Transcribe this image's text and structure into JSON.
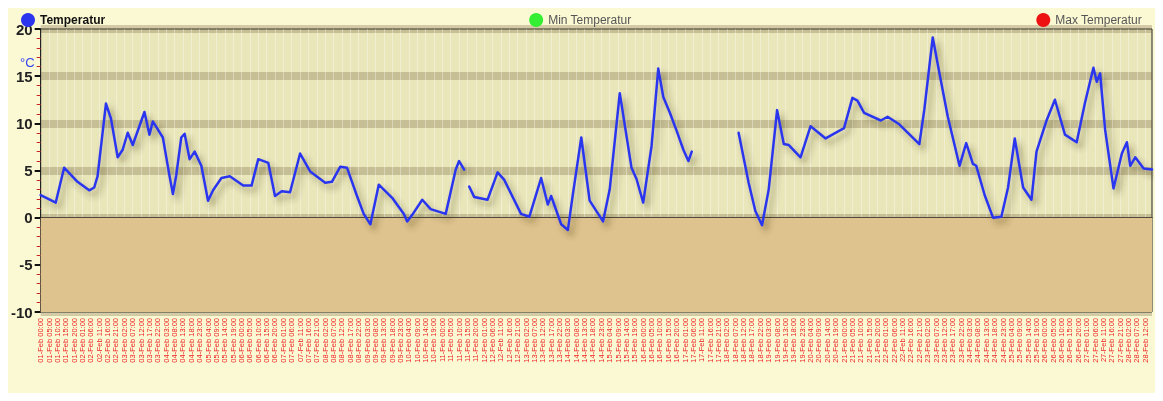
{
  "chart_data": {
    "type": "line",
    "ylabel": "°C",
    "xlim": [
      "--02-01T00:00",
      "--02-28T16:00"
    ],
    "ylim": [
      -10,
      20
    ],
    "yticks": [
      -10,
      -5,
      0,
      5,
      10,
      15,
      20
    ],
    "grid": true,
    "legend": "top",
    "marker": "none",
    "line_style": "solid",
    "bands": [
      {
        "axis": "y",
        "from": -10,
        "to": 0,
        "color": "#dfc38e"
      }
    ],
    "xticks": [
      {
        "value": "--02-01T00:00",
        "label": "01-Feb 00:00"
      },
      {
        "value": "--02-01T05:00",
        "label": "01-Feb 05:00"
      },
      {
        "value": "--02-01T10:00",
        "label": "01-Feb 10:00"
      },
      {
        "value": "--02-01T15:00",
        "label": "01-Feb 15:00"
      },
      {
        "value": "--02-01T20:00",
        "label": "01-Feb 20:00"
      },
      {
        "value": "--02-02T01:00",
        "label": "02-Feb 01:00"
      },
      {
        "value": "--02-02T06:00",
        "label": "02-Feb 06:00"
      },
      {
        "value": "--02-02T11:00",
        "label": "02-Feb 11:00"
      },
      {
        "value": "--02-02T16:00",
        "label": "02-Feb 16:00"
      },
      {
        "value": "--02-02T21:00",
        "label": "02-Feb 21:00"
      },
      {
        "value": "--02-03T02:00",
        "label": "03-Feb 02:00"
      },
      {
        "value": "--02-03T07:00",
        "label": "03-Feb 07:00"
      },
      {
        "value": "--02-03T12:00",
        "label": "03-Feb 12:00"
      },
      {
        "value": "--02-03T17:00",
        "label": "03-Feb 17:00"
      },
      {
        "value": "--02-03T22:00",
        "label": "03-Feb 22:00"
      },
      {
        "value": "--02-04T03:00",
        "label": "04-Feb 03:00"
      },
      {
        "value": "--02-04T08:00",
        "label": "04-Feb 08:00"
      },
      {
        "value": "--02-04T13:00",
        "label": "04-Feb 13:00"
      },
      {
        "value": "--02-04T18:00",
        "label": "04-Feb 18:00"
      },
      {
        "value": "--02-04T23:00",
        "label": "04-Feb 23:00"
      },
      {
        "value": "--02-05T04:00",
        "label": "05-Feb 04:00"
      },
      {
        "value": "--02-05T09:00",
        "label": "05-Feb 09:00"
      },
      {
        "value": "--02-05T14:00",
        "label": "05-Feb 14:00"
      },
      {
        "value": "--02-05T19:00",
        "label": "05-Feb 19:00"
      },
      {
        "value": "--02-06T00:00",
        "label": "06-Feb 00:00"
      },
      {
        "value": "--02-06T05:00",
        "label": "06-Feb 05:00"
      },
      {
        "value": "--02-06T10:00",
        "label": "06-Feb 10:00"
      },
      {
        "value": "--02-06T15:00",
        "label": "06-Feb 15:00"
      },
      {
        "value": "--02-06T20:00",
        "label": "06-Feb 20:00"
      },
      {
        "value": "--02-07T01:00",
        "label": "07-Feb 01:00"
      },
      {
        "value": "--02-07T06:00",
        "label": "07-Feb 06:00"
      },
      {
        "value": "--02-07T11:00",
        "label": "07-Feb 11:00"
      },
      {
        "value": "--02-07T16:00",
        "label": "07-Feb 16:00"
      },
      {
        "value": "--02-07T21:00",
        "label": "07-Feb 21:00"
      },
      {
        "value": "--02-08T02:00",
        "label": "08-Feb 02:00"
      },
      {
        "value": "--02-08T07:00",
        "label": "08-Feb 07:00"
      },
      {
        "value": "--02-08T12:00",
        "label": "08-Feb 12:00"
      },
      {
        "value": "--02-08T17:00",
        "label": "08-Feb 17:00"
      },
      {
        "value": "--02-08T22:00",
        "label": "08-Feb 22:00"
      },
      {
        "value": "--02-09T03:00",
        "label": "09-Feb 03:00"
      },
      {
        "value": "--02-09T08:00",
        "label": "09-Feb 08:00"
      },
      {
        "value": "--02-09T13:00",
        "label": "09-Feb 13:00"
      },
      {
        "value": "--02-09T18:00",
        "label": "09-Feb 18:00"
      },
      {
        "value": "--02-09T23:00",
        "label": "09-Feb 23:00"
      },
      {
        "value": "--02-10T04:00",
        "label": "10-Feb 04:00"
      },
      {
        "value": "--02-10T09:00",
        "label": "10-Feb 09:00"
      },
      {
        "value": "--02-10T14:00",
        "label": "10-Feb 14:00"
      },
      {
        "value": "--02-10T19:00",
        "label": "10-Feb 19:00"
      },
      {
        "value": "--02-11T00:00",
        "label": "11-Feb 00:00"
      },
      {
        "value": "--02-11T05:00",
        "label": "11-Feb 05:00"
      },
      {
        "value": "--02-11T10:00",
        "label": "11-Feb 10:00"
      },
      {
        "value": "--02-11T15:00",
        "label": "11-Feb 15:00"
      },
      {
        "value": "--02-11T20:00",
        "label": "11-Feb 20:00"
      },
      {
        "value": "--02-12T01:00",
        "label": "12-Feb 01:00"
      },
      {
        "value": "--02-12T06:00",
        "label": "12-Feb 06:00"
      },
      {
        "value": "--02-12T11:00",
        "label": "12-Feb 11:00"
      },
      {
        "value": "--02-12T16:00",
        "label": "12-Feb 16:00"
      },
      {
        "value": "--02-12T21:00",
        "label": "12-Feb 21:00"
      },
      {
        "value": "--02-13T02:00",
        "label": "13-Feb 02:00"
      },
      {
        "value": "--02-13T07:00",
        "label": "13-Feb 07:00"
      },
      {
        "value": "--02-13T12:00",
        "label": "13-Feb 12:00"
      },
      {
        "value": "--02-13T17:00",
        "label": "13-Feb 17:00"
      },
      {
        "value": "--02-13T22:00",
        "label": "13-Feb 22:00"
      },
      {
        "value": "--02-14T03:00",
        "label": "14-Feb 03:00"
      },
      {
        "value": "--02-14T08:00",
        "label": "14-Feb 08:00"
      },
      {
        "value": "--02-14T13:00",
        "label": "14-Feb 13:00"
      },
      {
        "value": "--02-14T18:00",
        "label": "14-Feb 18:00"
      },
      {
        "value": "--02-14T23:00",
        "label": "14-Feb 23:00"
      },
      {
        "value": "--02-15T04:00",
        "label": "15-Feb 04:00"
      },
      {
        "value": "--02-15T09:00",
        "label": "15-Feb 09:00"
      },
      {
        "value": "--02-15T14:00",
        "label": "15-Feb 14:00"
      },
      {
        "value": "--02-15T19:00",
        "label": "15-Feb 19:00"
      },
      {
        "value": "--02-16T00:00",
        "label": "16-Feb 00:00"
      },
      {
        "value": "--02-16T05:00",
        "label": "16-Feb 05:00"
      },
      {
        "value": "--02-16T10:00",
        "label": "16-Feb 10:00"
      },
      {
        "value": "--02-16T15:00",
        "label": "16-Feb 15:00"
      },
      {
        "value": "--02-16T20:00",
        "label": "16-Feb 20:00"
      },
      {
        "value": "--02-17T01:00",
        "label": "17-Feb 01:00"
      },
      {
        "value": "--02-17T06:00",
        "label": "17-Feb 06:00"
      },
      {
        "value": "--02-17T11:00",
        "label": "17-Feb 11:00"
      },
      {
        "value": "--02-17T16:00",
        "label": "17-Feb 16:00"
      },
      {
        "value": "--02-17T21:00",
        "label": "17-Feb 21:00"
      },
      {
        "value": "--02-18T02:00",
        "label": "18-Feb 02:00"
      },
      {
        "value": "--02-18T07:00",
        "label": "18-Feb 07:00"
      },
      {
        "value": "--02-18T12:00",
        "label": "18-Feb 12:00"
      },
      {
        "value": "--02-18T17:00",
        "label": "18-Feb 17:00"
      },
      {
        "value": "--02-18T22:00",
        "label": "18-Feb 22:00"
      },
      {
        "value": "--02-19T03:00",
        "label": "19-Feb 03:00"
      },
      {
        "value": "--02-19T08:00",
        "label": "19-Feb 08:00"
      },
      {
        "value": "--02-19T13:00",
        "label": "19-Feb 13:00"
      },
      {
        "value": "--02-19T18:00",
        "label": "19-Feb 18:00"
      },
      {
        "value": "--02-19T23:00",
        "label": "19-Feb 23:00"
      },
      {
        "value": "--02-20T04:00",
        "label": "20-Feb 04:00"
      },
      {
        "value": "--02-20T09:00",
        "label": "20-Feb 09:00"
      },
      {
        "value": "--02-20T14:00",
        "label": "20-Feb 14:00"
      },
      {
        "value": "--02-20T19:00",
        "label": "20-Feb 19:00"
      },
      {
        "value": "--02-21T00:00",
        "label": "21-Feb 00:00"
      },
      {
        "value": "--02-21T05:00",
        "label": "21-Feb 05:00"
      },
      {
        "value": "--02-21T10:00",
        "label": "21-Feb 10:00"
      },
      {
        "value": "--02-21T15:00",
        "label": "21-Feb 15:00"
      },
      {
        "value": "--02-21T20:00",
        "label": "21-Feb 20:00"
      },
      {
        "value": "--02-22T01:00",
        "label": "22-Feb 01:00"
      },
      {
        "value": "--02-22T06:00",
        "label": "22-Feb 06:00"
      },
      {
        "value": "--02-22T11:00",
        "label": "22-Feb 11:00"
      },
      {
        "value": "--02-22T16:00",
        "label": "22-Feb 16:00"
      },
      {
        "value": "--02-22T21:00",
        "label": "22-Feb 21:00"
      },
      {
        "value": "--02-23T02:00",
        "label": "23-Feb 02:00"
      },
      {
        "value": "--02-23T07:00",
        "label": "23-Feb 07:00"
      },
      {
        "value": "--02-23T12:00",
        "label": "23-Feb 12:00"
      },
      {
        "value": "--02-23T17:00",
        "label": "23-Feb 17:00"
      },
      {
        "value": "--02-23T22:00",
        "label": "23-Feb 22:00"
      },
      {
        "value": "--02-24T03:00",
        "label": "24-Feb 03:00"
      },
      {
        "value": "--02-24T08:00",
        "label": "24-Feb 08:00"
      },
      {
        "value": "--02-24T13:00",
        "label": "24-Feb 13:00"
      },
      {
        "value": "--02-24T18:00",
        "label": "24-Feb 18:00"
      },
      {
        "value": "--02-24T23:00",
        "label": "24-Feb 23:00"
      },
      {
        "value": "--02-25T04:00",
        "label": "25-Feb 04:00"
      },
      {
        "value": "--02-25T09:00",
        "label": "25-Feb 09:00"
      },
      {
        "value": "--02-25T14:00",
        "label": "25-Feb 14:00"
      },
      {
        "value": "--02-25T19:00",
        "label": "25-Feb 19:00"
      },
      {
        "value": "--02-26T00:00",
        "label": "26-Feb 00:00"
      },
      {
        "value": "--02-26T05:00",
        "label": "26-Feb 05:00"
      },
      {
        "value": "--02-26T10:00",
        "label": "26-Feb 10:00"
      },
      {
        "value": "--02-26T15:00",
        "label": "26-Feb 15:00"
      },
      {
        "value": "--02-26T20:00",
        "label": "26-Feb 20:00"
      },
      {
        "value": "--02-27T01:00",
        "label": "27-Feb 01:00"
      },
      {
        "value": "--02-27T06:00",
        "label": "27-Feb 06:00"
      },
      {
        "value": "--02-27T11:00",
        "label": "27-Feb 11:00"
      },
      {
        "value": "--02-27T16:00",
        "label": "27-Feb 16:00"
      },
      {
        "value": "--02-27T21:00",
        "label": "27-Feb 21:00"
      },
      {
        "value": "--02-28T02:00",
        "label": "28-Feb 02:00"
      },
      {
        "value": "--02-28T07:00",
        "label": "28-Feb 07:00"
      },
      {
        "value": "--02-28T12:00",
        "label": "28-Feb 12:00"
      }
    ],
    "series": [
      {
        "name": "Temperatur",
        "color": "#2b35ee",
        "x": [
          "--02-01T00:00",
          "--02-01T09:00",
          "--02-01T14:00",
          "--02-01T22:00",
          "--02-02T05:00",
          "--02-02T08:00",
          "--02-02T10:00",
          "--02-02T15:00",
          "--02-02T18:00",
          "--02-02T22:00",
          "--02-03T01:00",
          "--02-03T04:00",
          "--02-03T07:00",
          "--02-03T14:00",
          "--02-03T17:00",
          "--02-03T19:00",
          "--02-04T01:00",
          "--02-04T05:00",
          "--02-04T07:00",
          "--02-04T09:00",
          "--02-04T12:00",
          "--02-04T14:00",
          "--02-04T17:00",
          "--02-04T20:00",
          "--02-05T00:00",
          "--02-05T04:00",
          "--02-05T07:00",
          "--02-05T12:00",
          "--02-05T17:00",
          "--02-06T01:00",
          "--02-06T06:00",
          "--02-06T10:00",
          "--02-06T16:00",
          "--02-06T20:00",
          "--02-07T00:00",
          "--02-07T05:00",
          "--02-07T11:00",
          "--02-07T17:00",
          "--02-08T02:00",
          "--02-08T06:00",
          "--02-08T11:00",
          "--02-08T15:00",
          "--02-08T21:00",
          "--02-09T01:00",
          "--02-09T05:00",
          "--02-09T10:00",
          "--02-09T18:00",
          "--02-10T01:00",
          "--02-10T03:00",
          "--02-10T06:00",
          "--02-10T12:00",
          "--02-10T17:00",
          "--02-11T02:00",
          "--02-11T08:00",
          "--02-11T10:00",
          "--02-11T13:00",
          "--02-11T14:00",
          "--02-11T16:00",
          "--02-11T19:00",
          "--02-12T03:00",
          "--02-12T09:00",
          "--02-12T13:00",
          "--02-12T23:00",
          "--02-13T04:00",
          "--02-13T11:00",
          "--02-13T15:00",
          "--02-13T17:00",
          "--02-13T23:00",
          "--02-14T03:00",
          "--02-14T06:00",
          "--02-14T11:00",
          "--02-14T16:00",
          "--02-15T00:00",
          "--02-15T04:00",
          "--02-15T10:00",
          "--02-15T17:00",
          "--02-15T20:00",
          "--02-16T00:00",
          "--02-16T05:00",
          "--02-16T09:00",
          "--02-16T12:00",
          "--02-16T16:00",
          "--02-16T20:00",
          "--02-17T00:00",
          "--02-17T03:00",
          "--02-17T05:00",
          "--02-17T16:00",
          "--02-18T09:00",
          "--02-18T15:00",
          "--02-18T19:00",
          "--02-18T23:00",
          "--02-19T03:00",
          "--02-19T08:00",
          "--02-19T12:00",
          "--02-19T15:00",
          "--02-19T22:00",
          "--02-20T04:00",
          "--02-20T13:00",
          "--02-20T17:00",
          "--02-21T00:00",
          "--02-21T05:00",
          "--02-21T08:00",
          "--02-21T12:00",
          "--02-21T22:00",
          "--02-22T02:00",
          "--02-22T09:00",
          "--02-22T21:00",
          "--02-23T00:00",
          "--02-23T05:00",
          "--02-23T09:00",
          "--02-23T14:00",
          "--02-23T21:00",
          "--02-24T01:00",
          "--02-24T05:00",
          "--02-24T07:00",
          "--02-24T12:00",
          "--02-24T17:00",
          "--02-24T22:00",
          "--02-25T02:00",
          "--02-25T06:00",
          "--02-25T11:00",
          "--02-25T16:00",
          "--02-25T19:00",
          "--02-26T01:00",
          "--02-26T06:00",
          "--02-26T12:00",
          "--02-26T19:00",
          "--02-27T00:00",
          "--02-27T05:00",
          "--02-27T07:00",
          "--02-27T09:00",
          "--02-27T12:00",
          "--02-27T17:00",
          "--02-27T22:00",
          "--02-28T01:00",
          "--02-28T03:00",
          "--02-28T06:00",
          "--02-28T11:00",
          "--02-28T16:00"
        ],
        "values": [
          2.4,
          1.6,
          5.3,
          3.8,
          2.9,
          3.2,
          4.4,
          12.1,
          10.5,
          6.4,
          7.2,
          9.0,
          7.7,
          11.2,
          8.8,
          10.2,
          8.5,
          4.4,
          2.5,
          4.5,
          8.5,
          8.9,
          6.2,
          7.0,
          5.5,
          1.8,
          2.9,
          4.2,
          4.4,
          3.4,
          3.4,
          6.2,
          5.8,
          2.3,
          2.8,
          2.7,
          6.8,
          4.9,
          3.7,
          3.8,
          5.4,
          5.3,
          2.3,
          0.4,
          -0.7,
          3.5,
          2.1,
          0.4,
          -0.4,
          0.3,
          1.9,
          0.9,
          0.4,
          5.1,
          6.0,
          5.1,
          null,
          3.3,
          2.2,
          1.9,
          4.8,
          4.0,
          0.4,
          0.1,
          4.2,
          1.4,
          2.3,
          -0.7,
          -1.3,
          2.5,
          8.5,
          1.8,
          -0.4,
          3.0,
          13.2,
          5.3,
          4.1,
          1.6,
          7.6,
          15.8,
          12.8,
          11.1,
          9.2,
          7.2,
          6.0,
          7.0,
          null,
          9.0,
          3.7,
          0.7,
          -0.8,
          3.0,
          11.4,
          7.8,
          7.7,
          6.4,
          9.7,
          8.4,
          8.8,
          9.5,
          12.7,
          12.4,
          11.1,
          10.3,
          10.7,
          9.9,
          7.8,
          11.5,
          19.1,
          15.3,
          10.7,
          5.5,
          7.9,
          5.7,
          5.5,
          2.4,
          0.0,
          0.1,
          3.2,
          8.4,
          3.2,
          1.9,
          7.0,
          10.3,
          12.5,
          8.8,
          8.0,
          12.2,
          15.9,
          14.4,
          15.3,
          9.3,
          3.1,
          6.8,
          8.0,
          5.5,
          6.4,
          5.2,
          5.1
        ]
      },
      {
        "name": "Min Temperatur",
        "color": "#33ee33"
      },
      {
        "name": "Max Temperatur",
        "color": "#ee1111"
      }
    ]
  }
}
